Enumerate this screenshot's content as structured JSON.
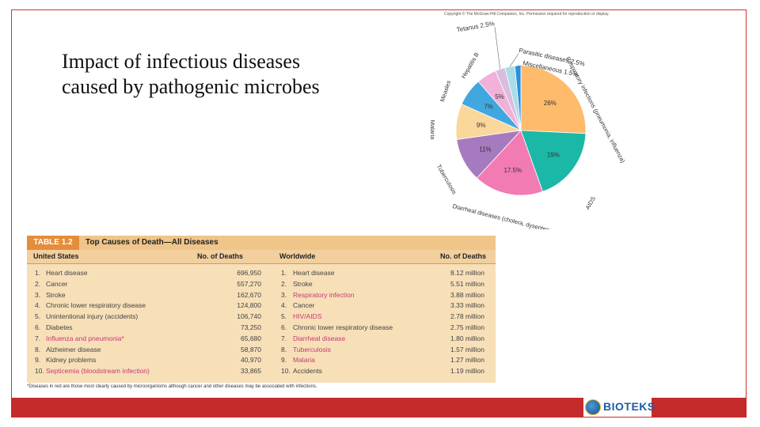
{
  "slide": {
    "title_line1": "Impact of infectious diseases",
    "title_line2": "caused by pathogenic microbes"
  },
  "pie": {
    "copyright": "Copyright © The McGraw-Hill Companies, Inc. Permission required for reproduction or display.",
    "slices": [
      {
        "label": "Respiratory infections (pneumonia, influenza)",
        "value": 26,
        "text": "26%",
        "color": "#fdbb6b"
      },
      {
        "label": "AIDS",
        "value": 19,
        "text": "19%",
        "color": "#1bb8a8"
      },
      {
        "label": "Diarrheal diseases (cholera, dysentery, typhoid)",
        "value": 17.5,
        "text": "17.5%",
        "color": "#f27bb3"
      },
      {
        "label": "Tuberculosis",
        "value": 11,
        "text": "11%",
        "color": "#a67abf"
      },
      {
        "label": "Malaria",
        "value": 9,
        "text": "9%",
        "color": "#fbd79c"
      },
      {
        "label": "Measles",
        "value": 7,
        "text": "7%",
        "color": "#40a7df"
      },
      {
        "label": "Hepatitis B",
        "value": 5,
        "text": "5%",
        "color": "#f2b1d8"
      },
      {
        "label": "Tetanus 2.5%",
        "value": 2.5,
        "text": "",
        "color": "#d7bde0"
      },
      {
        "label": "Parasitic diseases 2.5%",
        "value": 2.5,
        "text": "",
        "color": "#a8dce8"
      },
      {
        "label": "Miscellaneous 1.5%",
        "value": 1.5,
        "text": "",
        "color": "#2a8fe0"
      }
    ]
  },
  "table": {
    "badge": "TABLE 1.2",
    "title": "Top Causes of Death—All Diseases",
    "col_us": "United States",
    "col_us_deaths": "No. of Deaths",
    "col_world": "Worldwide",
    "col_world_deaths": "No. of Deaths",
    "rows": [
      {
        "n": "1.",
        "us": "Heart disease",
        "us_d": "696,950",
        "w": "Heart disease",
        "w_d": "8.12 million"
      },
      {
        "n": "2.",
        "us": "Cancer",
        "us_d": "557,270",
        "w": "Stroke",
        "w_d": "5.51 million"
      },
      {
        "n": "3.",
        "us": "Stroke",
        "us_d": "162,670",
        "w": "Respiratory infection",
        "w_d": "3.88 million"
      },
      {
        "n": "4.",
        "us": "Chronic lower respiratory disease",
        "us_d": "124,800",
        "w": "Cancer",
        "w_d": "3.33 million"
      },
      {
        "n": "5.",
        "us": "Unintentional injury (accidents)",
        "us_d": "106,740",
        "w": "HIV/AIDS",
        "w_d": "2.78 million"
      },
      {
        "n": "6.",
        "us": "Diabetes",
        "us_d": "73,250",
        "w": "Chronic lower respiratory disease",
        "w_d": "2.75 million"
      },
      {
        "n": "7.",
        "us": "Influenza and pneumonia*",
        "us_d": "65,680",
        "w": "Diarrheal disease",
        "w_d": "1.80 million"
      },
      {
        "n": "8.",
        "us": "Alzheimer disease",
        "us_d": "58,870",
        "w": "Tuberculosis",
        "w_d": "1.57 million"
      },
      {
        "n": "9.",
        "us": "Kidney problems",
        "us_d": "40,970",
        "w": "Malaria",
        "w_d": "1.27 million"
      },
      {
        "n": "10.",
        "us": "Septicemia (bloodstream infection)",
        "us_d": "33,865",
        "w": "Accidents",
        "w_d": "1.19 million"
      }
    ],
    "red_us": [
      6,
      9
    ],
    "red_world": [
      2,
      4,
      6,
      7,
      8
    ],
    "footnote": "*Diseases in red are those most clearly caused by microorganisms although cancer and other diseases may be associated with infections."
  },
  "logo": {
    "text": "BIOTEKS"
  },
  "colors": {
    "accent_red": "#c52b2b",
    "table_bg": "#f7dfb8",
    "disease_red": "#c53a73"
  }
}
